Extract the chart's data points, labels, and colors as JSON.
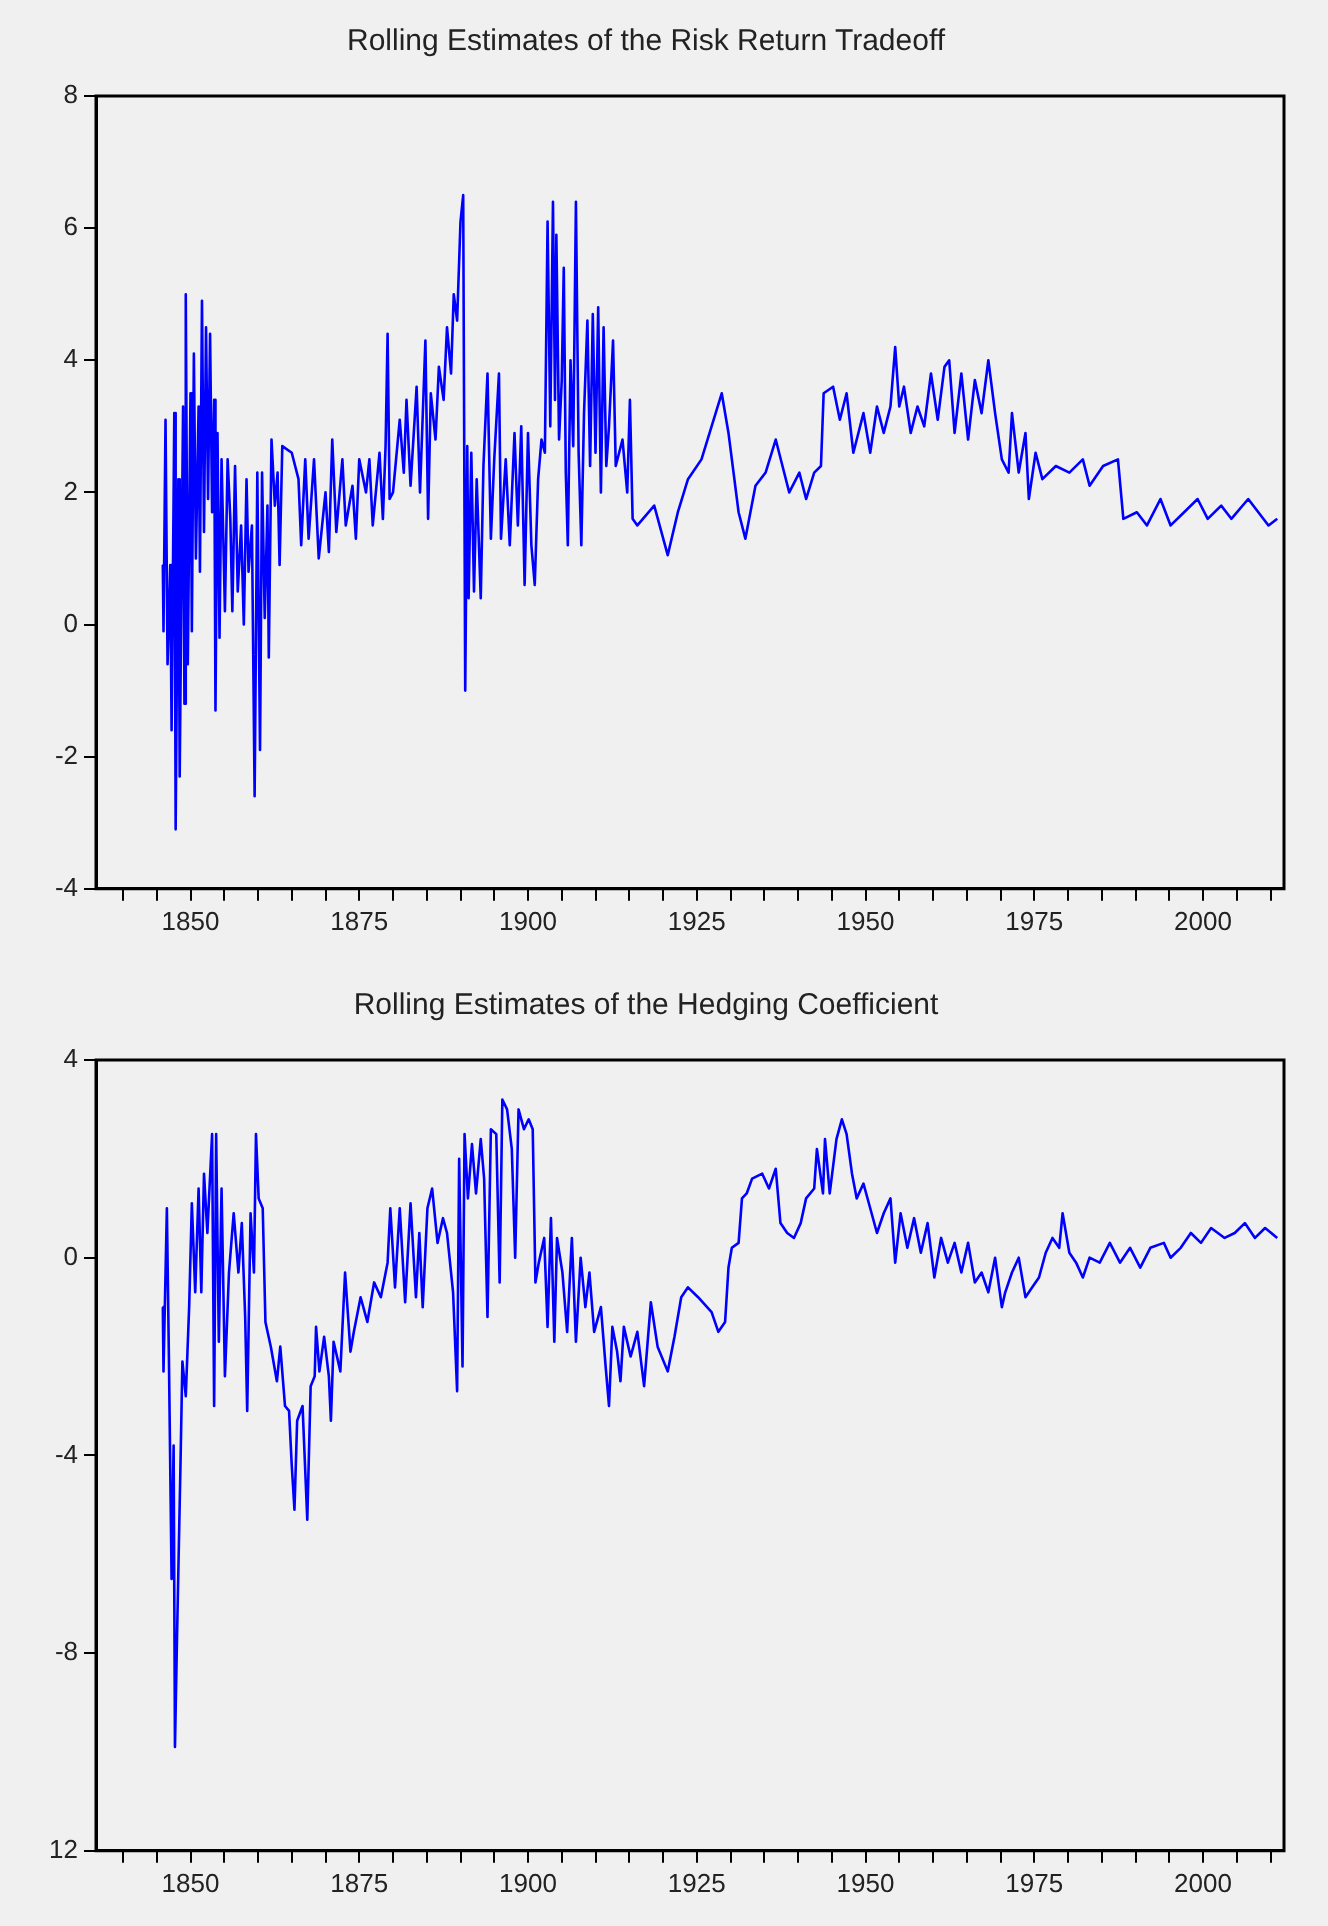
{
  "chart_data": [
    {
      "type": "line",
      "title": "Rolling Estimates of the Risk Return Tradeoff",
      "x": [
        1845.9,
        1846.0,
        1846.3,
        1846.6,
        1847.0,
        1847.2,
        1847.6,
        1847.8,
        1848.2,
        1848.4,
        1848.9,
        1849.1,
        1849.3,
        1849.6,
        1850.0,
        1850.2,
        1850.5,
        1850.8,
        1851.2,
        1851.4,
        1851.7,
        1852.0,
        1852.3,
        1852.6,
        1852.9,
        1853.2,
        1853.5,
        1853.7,
        1854.0,
        1854.3,
        1854.6,
        1855.1,
        1855.5,
        1855.9,
        1856.2,
        1856.6,
        1857.0,
        1857.5,
        1857.9,
        1858.3,
        1858.6,
        1859.1,
        1859.5,
        1859.9,
        1860.3,
        1860.6,
        1861.0,
        1861.4,
        1861.6,
        1862.0,
        1862.5,
        1862.9,
        1863.2,
        1863.6,
        1865.0,
        1866.0,
        1866.4,
        1867.0,
        1867.5,
        1868.3,
        1869.0,
        1870.0,
        1870.5,
        1871.0,
        1871.6,
        1872.5,
        1873.0,
        1874.0,
        1874.5,
        1875.0,
        1876.0,
        1876.5,
        1877.0,
        1878.0,
        1878.5,
        1878.9,
        1879.2,
        1879.5,
        1880.0,
        1881.0,
        1881.6,
        1882.0,
        1882.6,
        1883.5,
        1884.0,
        1884.8,
        1885.2,
        1885.6,
        1886.3,
        1886.8,
        1887.5,
        1888.0,
        1888.6,
        1889.0,
        1889.5,
        1890.0,
        1890.4,
        1890.7,
        1891.0,
        1891.2,
        1891.6,
        1892.0,
        1892.4,
        1893.0,
        1893.4,
        1894.0,
        1894.5,
        1895.0,
        1895.7,
        1896.0,
        1896.7,
        1897.3,
        1898.0,
        1898.5,
        1899.0,
        1899.5,
        1900.0,
        1900.5,
        1901.0,
        1901.5,
        1902.0,
        1902.5,
        1902.9,
        1903.3,
        1903.7,
        1904.0,
        1904.2,
        1904.6,
        1905.0,
        1905.3,
        1905.6,
        1905.9,
        1906.3,
        1906.7,
        1907.1,
        1907.5,
        1907.9,
        1908.3,
        1908.8,
        1909.2,
        1909.6,
        1910.0,
        1910.4,
        1910.8,
        1911.2,
        1911.6,
        1912.0,
        1912.6,
        1913.0,
        1914.0,
        1914.7,
        1915.1,
        1915.5,
        1916.2,
        1918.7,
        1920.7,
        1922.2,
        1923.7,
        1925.7,
        1927.2,
        1928.7,
        1929.7,
        1931.2,
        1932.2,
        1933.7,
        1935.2,
        1936.7,
        1937.7,
        1938.7,
        1940.2,
        1941.2,
        1942.4,
        1943.4,
        1943.8,
        1945.2,
        1946.2,
        1947.2,
        1948.2,
        1949.7,
        1950.7,
        1951.7,
        1952.7,
        1953.7,
        1954.4,
        1955.0,
        1955.7,
        1956.7,
        1957.7,
        1958.7,
        1959.7,
        1960.7,
        1961.7,
        1962.4,
        1963.2,
        1964.2,
        1965.2,
        1966.2,
        1967.2,
        1968.2,
        1969.2,
        1970.2,
        1971.2,
        1971.7,
        1972.7,
        1973.7,
        1974.2,
        1975.2,
        1976.2,
        1978.2,
        1980.2,
        1982.2,
        1983.2,
        1985.2,
        1987.4,
        1988.2,
        1990.2,
        1991.7,
        1993.7,
        1995.2,
        1997.2,
        1999.2,
        2000.7,
        2002.7,
        2004.2,
        2006.7,
        2008.2,
        2009.7,
        2011.0
      ],
      "series": [
        {
          "color": "#0000ff",
          "values": [
            0.9,
            -0.1,
            3.1,
            -0.6,
            0.9,
            -1.6,
            3.2,
            -3.1,
            2.2,
            -2.3,
            3.3,
            -1.2,
            5.0,
            -0.6,
            3.5,
            -0.1,
            4.1,
            1.0,
            3.3,
            0.8,
            4.9,
            1.4,
            4.5,
            1.9,
            4.4,
            1.7,
            3.4,
            -1.3,
            2.9,
            -0.2,
            2.5,
            0.2,
            2.5,
            1.6,
            0.2,
            2.4,
            0.5,
            1.5,
            0.0,
            2.2,
            0.8,
            1.5,
            -2.6,
            2.3,
            -1.9,
            2.3,
            0.1,
            1.8,
            -0.5,
            2.8,
            1.8,
            2.3,
            0.9,
            2.7,
            2.6,
            2.2,
            1.2,
            2.5,
            1.3,
            2.5,
            1.0,
            2.0,
            1.1,
            2.8,
            1.4,
            2.5,
            1.5,
            2.1,
            1.3,
            2.5,
            2.0,
            2.5,
            1.5,
            2.6,
            1.6,
            2.7,
            4.4,
            1.9,
            2.0,
            3.1,
            2.3,
            3.4,
            2.1,
            3.6,
            2.0,
            4.3,
            1.6,
            3.5,
            2.8,
            3.9,
            3.4,
            4.5,
            3.8,
            5.0,
            4.6,
            6.1,
            6.5,
            -1.0,
            2.7,
            0.4,
            2.6,
            0.5,
            2.2,
            0.4,
            2.4,
            3.8,
            1.3,
            2.5,
            3.8,
            1.3,
            2.5,
            1.2,
            2.9,
            1.5,
            3.0,
            0.6,
            2.9,
            1.2,
            0.6,
            2.2,
            2.8,
            2.6,
            6.1,
            3.0,
            6.4,
            3.4,
            5.9,
            2.8,
            3.7,
            5.4,
            2.3,
            1.2,
            4.0,
            2.7,
            6.4,
            2.6,
            1.2,
            3.2,
            4.6,
            2.4,
            4.7,
            2.6,
            4.8,
            2.0,
            4.5,
            2.4,
            3.0,
            4.3,
            2.4,
            2.8,
            2.0,
            3.4,
            1.6,
            1.5,
            1.8,
            1.05,
            1.7,
            2.2,
            2.5,
            3.0,
            3.5,
            2.9,
            1.7,
            1.3,
            2.1,
            2.3,
            2.8,
            2.4,
            2.0,
            2.3,
            1.9,
            2.3,
            2.4,
            3.5,
            3.6,
            3.1,
            3.5,
            2.6,
            3.2,
            2.6,
            3.3,
            2.9,
            3.3,
            4.2,
            3.3,
            3.6,
            2.9,
            3.3,
            3.0,
            3.8,
            3.1,
            3.9,
            4.0,
            2.9,
            3.8,
            2.8,
            3.7,
            3.2,
            4.0,
            3.2,
            2.5,
            2.3,
            3.2,
            2.3,
            2.9,
            1.9,
            2.6,
            2.2,
            2.4,
            2.3,
            2.5,
            2.1,
            2.4,
            2.5,
            1.6,
            1.7,
            1.5,
            1.9,
            1.5,
            1.7,
            1.9,
            1.6,
            1.8,
            1.6,
            1.9,
            1.7,
            1.5,
            1.6
          ]
        }
      ],
      "xlim": [
        1836,
        2012
      ],
      "xticks": [
        {
          "value": 1840,
          "label": null
        },
        {
          "value": 1845,
          "label": null
        },
        1850,
        {
          "value": 1855,
          "label": null
        },
        {
          "value": 1860,
          "label": null
        },
        {
          "value": 1865,
          "label": null
        },
        {
          "value": 1870,
          "label": null
        },
        1875,
        {
          "value": 1880,
          "label": null
        },
        {
          "value": 1885,
          "label": null
        },
        {
          "value": 1890,
          "label": null
        },
        {
          "value": 1895,
          "label": null
        },
        1900,
        {
          "value": 1905,
          "label": null
        },
        {
          "value": 1910,
          "label": null
        },
        {
          "value": 1915,
          "label": null
        },
        {
          "value": 1920,
          "label": null
        },
        1925,
        {
          "value": 1930,
          "label": null
        },
        {
          "value": 1935,
          "label": null
        },
        {
          "value": 1940,
          "label": null
        },
        {
          "value": 1945,
          "label": null
        },
        1950,
        {
          "value": 1955,
          "label": null
        },
        {
          "value": 1960,
          "label": null
        },
        {
          "value": 1965,
          "label": null
        },
        {
          "value": 1970,
          "label": null
        },
        1975,
        {
          "value": 1980,
          "label": null
        },
        {
          "value": 1985,
          "label": null
        },
        {
          "value": 1990,
          "label": null
        },
        {
          "value": 1995,
          "label": null
        },
        2000,
        {
          "value": 2005,
          "label": null
        },
        {
          "value": 2010,
          "label": null
        }
      ],
      "ylim": [
        -4,
        8
      ],
      "yticks": [
        -4,
        -2,
        0,
        2,
        4,
        6,
        8
      ],
      "grid": false,
      "legend": false,
      "marker": "none",
      "line_style": "solid"
    },
    {
      "type": "line",
      "title": "Rolling Estimates of the Hedging Coefficient",
      "x": [
        1845.9,
        1846.0,
        1846.5,
        1846.8,
        1847.2,
        1847.5,
        1847.7,
        1848.0,
        1848.5,
        1848.8,
        1849.3,
        1849.8,
        1850.2,
        1850.7,
        1851.2,
        1851.6,
        1852.0,
        1852.5,
        1853.2,
        1853.5,
        1853.8,
        1854.2,
        1854.6,
        1855.1,
        1855.7,
        1856.4,
        1857.1,
        1857.6,
        1858.1,
        1858.4,
        1858.9,
        1859.4,
        1859.7,
        1860.1,
        1860.7,
        1861.1,
        1861.9,
        1862.8,
        1863.3,
        1864.0,
        1864.6,
        1865.0,
        1865.4,
        1865.8,
        1866.6,
        1867.3,
        1867.8,
        1868.4,
        1868.6,
        1869.1,
        1869.8,
        1870.5,
        1870.8,
        1871.2,
        1872.2,
        1872.9,
        1873.7,
        1874.2,
        1875.2,
        1876.2,
        1877.2,
        1878.2,
        1879.2,
        1879.6,
        1880.3,
        1881.0,
        1881.8,
        1882.6,
        1883.4,
        1883.9,
        1884.4,
        1885.1,
        1885.8,
        1886.6,
        1887.4,
        1888.0,
        1888.9,
        1889.5,
        1889.8,
        1890.3,
        1890.6,
        1891.1,
        1891.7,
        1892.3,
        1893.0,
        1893.5,
        1894.0,
        1894.5,
        1895.3,
        1895.8,
        1896.2,
        1896.9,
        1897.6,
        1898.1,
        1898.6,
        1899.4,
        1900.1,
        1900.7,
        1901.1,
        1901.6,
        1902.4,
        1902.9,
        1903.4,
        1903.9,
        1904.3,
        1905.1,
        1905.8,
        1906.5,
        1907.1,
        1907.8,
        1908.5,
        1909.1,
        1909.8,
        1910.8,
        1911.5,
        1912.0,
        1912.5,
        1913.2,
        1913.7,
        1914.2,
        1915.2,
        1916.2,
        1917.2,
        1918.2,
        1919.2,
        1920.7,
        1921.7,
        1922.7,
        1923.7,
        1925.2,
        1927.2,
        1928.2,
        1929.2,
        1929.7,
        1930.2,
        1931.2,
        1931.7,
        1932.4,
        1933.2,
        1934.7,
        1935.7,
        1936.7,
        1937.4,
        1938.4,
        1939.4,
        1940.4,
        1941.2,
        1942.4,
        1942.8,
        1943.7,
        1944.0,
        1944.7,
        1945.7,
        1946.5,
        1947.2,
        1948.0,
        1948.7,
        1949.7,
        1950.7,
        1951.7,
        1952.7,
        1953.7,
        1954.4,
        1955.2,
        1956.2,
        1957.2,
        1958.2,
        1959.2,
        1960.2,
        1961.2,
        1962.2,
        1963.2,
        1964.2,
        1965.2,
        1966.2,
        1967.2,
        1968.2,
        1969.2,
        1970.2,
        1970.7,
        1971.7,
        1972.7,
        1973.7,
        1974.7,
        1975.7,
        1976.7,
        1977.7,
        1978.7,
        1979.2,
        1980.2,
        1981.2,
        1982.2,
        1983.2,
        1984.7,
        1986.2,
        1987.7,
        1989.2,
        1990.7,
        1992.2,
        1994.2,
        1995.2,
        1996.7,
        1998.2,
        1999.7,
        2001.2,
        2003.2,
        2004.7,
        2006.2,
        2007.7,
        2009.2,
        2011.0
      ],
      "series": [
        {
          "color": "#0000ff",
          "values": [
            -1.0,
            -2.3,
            1.0,
            -2.0,
            -6.5,
            -3.8,
            -9.9,
            -7.7,
            -4.3,
            -2.1,
            -2.8,
            -1.0,
            1.1,
            -0.7,
            1.4,
            -0.7,
            1.7,
            0.5,
            2.5,
            -3.0,
            2.5,
            -1.7,
            1.4,
            -2.4,
            -0.3,
            0.9,
            -0.3,
            0.7,
            -1.2,
            -3.1,
            0.9,
            -0.3,
            2.5,
            1.2,
            1.0,
            -1.3,
            -1.8,
            -2.5,
            -1.8,
            -3.0,
            -3.1,
            -4.2,
            -5.1,
            -3.3,
            -3.0,
            -5.3,
            -2.6,
            -2.4,
            -1.4,
            -2.3,
            -1.6,
            -2.4,
            -3.3,
            -1.7,
            -2.3,
            -0.3,
            -1.9,
            -1.5,
            -0.8,
            -1.3,
            -0.5,
            -0.8,
            -0.1,
            1.0,
            -0.6,
            1.0,
            -0.9,
            1.1,
            -0.8,
            0.5,
            -1.0,
            1.0,
            1.4,
            0.3,
            0.8,
            0.5,
            -0.7,
            -2.7,
            2.0,
            -2.2,
            2.5,
            1.2,
            2.3,
            1.3,
            2.4,
            1.6,
            -1.2,
            2.6,
            2.5,
            -0.5,
            3.2,
            3.0,
            2.2,
            0.0,
            3.0,
            2.6,
            2.8,
            2.6,
            -0.5,
            -0.1,
            0.4,
            -1.4,
            0.8,
            -1.7,
            0.4,
            -0.3,
            -1.5,
            0.4,
            -1.7,
            0.0,
            -1.0,
            -0.3,
            -1.5,
            -1.0,
            -2.2,
            -3.0,
            -1.4,
            -1.9,
            -2.5,
            -1.4,
            -2.0,
            -1.5,
            -2.6,
            -0.9,
            -1.8,
            -2.3,
            -1.6,
            -0.8,
            -0.6,
            -0.8,
            -1.1,
            -1.5,
            -1.3,
            -0.2,
            0.2,
            0.3,
            1.2,
            1.3,
            1.6,
            1.7,
            1.4,
            1.8,
            0.7,
            0.5,
            0.4,
            0.7,
            1.2,
            1.4,
            2.2,
            1.3,
            2.4,
            1.3,
            2.4,
            2.8,
            2.5,
            1.7,
            1.2,
            1.5,
            1.0,
            0.5,
            0.9,
            1.2,
            -0.1,
            0.9,
            0.2,
            0.8,
            0.1,
            0.7,
            -0.4,
            0.4,
            -0.1,
            0.3,
            -0.3,
            0.3,
            -0.5,
            -0.3,
            -0.7,
            0.0,
            -1.0,
            -0.7,
            -0.3,
            0.0,
            -0.8,
            -0.6,
            -0.4,
            0.1,
            0.4,
            0.2,
            0.9,
            0.1,
            -0.1,
            -0.4,
            0.0,
            -0.1,
            0.3,
            -0.1,
            0.2,
            -0.2,
            0.2,
            0.3,
            0.0,
            0.2,
            0.5,
            0.3,
            0.6,
            0.4,
            0.5,
            0.7,
            0.4,
            0.6,
            0.4
          ]
        }
      ],
      "xlim": [
        1836,
        2012
      ],
      "xticks": [
        {
          "value": 1840,
          "label": null
        },
        {
          "value": 1845,
          "label": null
        },
        1850,
        {
          "value": 1855,
          "label": null
        },
        {
          "value": 1860,
          "label": null
        },
        {
          "value": 1865,
          "label": null
        },
        {
          "value": 1870,
          "label": null
        },
        1875,
        {
          "value": 1880,
          "label": null
        },
        {
          "value": 1885,
          "label": null
        },
        {
          "value": 1890,
          "label": null
        },
        {
          "value": 1895,
          "label": null
        },
        1900,
        {
          "value": 1905,
          "label": null
        },
        {
          "value": 1910,
          "label": null
        },
        {
          "value": 1915,
          "label": null
        },
        {
          "value": 1920,
          "label": null
        },
        1925,
        {
          "value": 1930,
          "label": null
        },
        {
          "value": 1935,
          "label": null
        },
        {
          "value": 1940,
          "label": null
        },
        {
          "value": 1945,
          "label": null
        },
        1950,
        {
          "value": 1955,
          "label": null
        },
        {
          "value": 1960,
          "label": null
        },
        {
          "value": 1965,
          "label": null
        },
        {
          "value": 1970,
          "label": null
        },
        1975,
        {
          "value": 1980,
          "label": null
        },
        {
          "value": 1985,
          "label": null
        },
        {
          "value": 1990,
          "label": null
        },
        {
          "value": 1995,
          "label": null
        },
        2000,
        {
          "value": 2005,
          "label": null
        },
        {
          "value": 2010,
          "label": null
        }
      ],
      "ylim": [
        -12,
        4
      ],
      "yticks": [
        {
          "value": -12,
          "label": "12"
        },
        -8,
        -4,
        0,
        4
      ],
      "grid": false,
      "legend": false,
      "marker": "none",
      "line_style": "solid"
    }
  ]
}
